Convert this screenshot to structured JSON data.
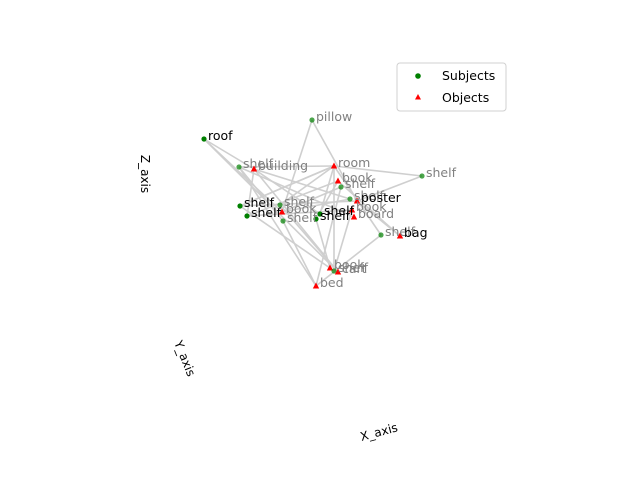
{
  "chart_data": {
    "type": "scatter",
    "title": "",
    "axes": {
      "x_label": "X_axis",
      "y_label": "Y_axis",
      "z_label": "Z_axis"
    },
    "grid": false,
    "legend": {
      "placement": "top-right",
      "entries": [
        {
          "label": "Subjects",
          "marker": "circle",
          "color": "#008000"
        },
        {
          "label": "Objects",
          "marker": "triangle",
          "color": "#ff0000"
        }
      ]
    },
    "colors": {
      "subject": "#008000",
      "object": "#ff0000",
      "edge": "#cfcfcf",
      "label_near": "#000000",
      "label_far": "#808080"
    },
    "nodes": [
      {
        "id": "n1",
        "label": "roof",
        "role": "subject",
        "sx": 204,
        "sy": 139,
        "shade": "near"
      },
      {
        "id": "n2",
        "label": "pillow",
        "role": "subject",
        "sx": 312,
        "sy": 120,
        "shade": "far"
      },
      {
        "id": "n3",
        "label": "shelf",
        "role": "subject",
        "sx": 422,
        "sy": 176,
        "shade": "far"
      },
      {
        "id": "n4",
        "label": "shelf",
        "role": "subject",
        "sx": 239,
        "sy": 167,
        "shade": "far"
      },
      {
        "id": "n5",
        "label": "building",
        "role": "object",
        "sx": 254,
        "sy": 169,
        "shade": "far"
      },
      {
        "id": "n6",
        "label": "room",
        "role": "object",
        "sx": 334,
        "sy": 166,
        "shade": "far"
      },
      {
        "id": "n7",
        "label": "book",
        "role": "object",
        "sx": 338,
        "sy": 181,
        "shade": "far"
      },
      {
        "id": "n8",
        "label": "shelf",
        "role": "subject",
        "sx": 341,
        "sy": 187,
        "shade": "far"
      },
      {
        "id": "n9",
        "label": "shelf",
        "role": "subject",
        "sx": 240,
        "sy": 206,
        "shade": "near"
      },
      {
        "id": "n10",
        "label": "shelf",
        "role": "subject",
        "sx": 247,
        "sy": 216,
        "shade": "near"
      },
      {
        "id": "n11",
        "label": "shelf",
        "role": "subject",
        "sx": 280,
        "sy": 205,
        "shade": "far"
      },
      {
        "id": "n12",
        "label": "book",
        "role": "object",
        "sx": 282,
        "sy": 212,
        "shade": "far"
      },
      {
        "id": "n13",
        "label": "shelf",
        "role": "subject",
        "sx": 283,
        "sy": 221,
        "shade": "far"
      },
      {
        "id": "n14",
        "label": "shelf",
        "role": "subject",
        "sx": 320,
        "sy": 214,
        "shade": "near"
      },
      {
        "id": "n15",
        "label": "shelf",
        "role": "subject",
        "sx": 316,
        "sy": 219,
        "shade": "near"
      },
      {
        "id": "n16",
        "label": "shelf",
        "role": "subject",
        "sx": 350,
        "sy": 199,
        "shade": "far"
      },
      {
        "id": "n17",
        "label": "poster",
        "role": "object",
        "sx": 357,
        "sy": 201,
        "shade": "near"
      },
      {
        "id": "n18",
        "label": "book",
        "role": "object",
        "sx": 352,
        "sy": 210,
        "shade": "far"
      },
      {
        "id": "n19",
        "label": "board",
        "role": "object",
        "sx": 354,
        "sy": 217,
        "shade": "far"
      },
      {
        "id": "n20",
        "label": "shelf",
        "role": "subject",
        "sx": 381,
        "sy": 235,
        "shade": "far"
      },
      {
        "id": "n21",
        "label": "bag",
        "role": "object",
        "sx": 400,
        "sy": 236,
        "shade": "near"
      },
      {
        "id": "n22",
        "label": "book",
        "role": "object",
        "sx": 330,
        "sy": 268,
        "shade": "far"
      },
      {
        "id": "n23",
        "label": "shelf",
        "role": "subject",
        "sx": 334,
        "sy": 271,
        "shade": "far"
      },
      {
        "id": "n24",
        "label": "cart",
        "role": "object",
        "sx": 338,
        "sy": 272,
        "shade": "far"
      },
      {
        "id": "n25",
        "label": "bed",
        "role": "object",
        "sx": 316,
        "sy": 286,
        "shade": "far"
      }
    ],
    "edges": [
      [
        "n1",
        "n5"
      ],
      [
        "n1",
        "n12"
      ],
      [
        "n2",
        "n12"
      ],
      [
        "n2",
        "n17"
      ],
      [
        "n3",
        "n6"
      ],
      [
        "n4",
        "n6"
      ],
      [
        "n4",
        "n13"
      ],
      [
        "n4",
        "n19"
      ],
      [
        "n5",
        "n14"
      ],
      [
        "n5",
        "n16"
      ],
      [
        "n5",
        "n24"
      ],
      [
        "n6",
        "n9"
      ],
      [
        "n6",
        "n11"
      ],
      [
        "n6",
        "n23"
      ],
      [
        "n7",
        "n10"
      ],
      [
        "n7",
        "n21"
      ],
      [
        "n8",
        "n12"
      ],
      [
        "n8",
        "n25"
      ],
      [
        "n9",
        "n17"
      ],
      [
        "n9",
        "n22"
      ],
      [
        "n10",
        "n18"
      ],
      [
        "n11",
        "n24"
      ],
      [
        "n13",
        "n25"
      ],
      [
        "n14",
        "n6"
      ],
      [
        "n15",
        "n7"
      ],
      [
        "n15",
        "n22"
      ],
      [
        "n16",
        "n12"
      ],
      [
        "n18",
        "n23"
      ],
      [
        "n20",
        "n6"
      ],
      [
        "n20",
        "n25"
      ],
      [
        "n21",
        "n17"
      ],
      [
        "n3",
        "n17"
      ],
      [
        "n1",
        "n24"
      ],
      [
        "n4",
        "n25"
      ],
      [
        "n9",
        "n6"
      ],
      [
        "n10",
        "n5"
      ]
    ]
  }
}
